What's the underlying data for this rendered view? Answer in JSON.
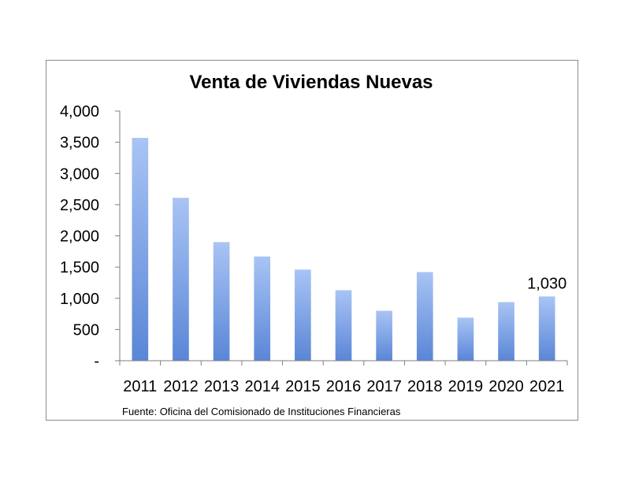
{
  "chart_data": {
    "type": "bar",
    "title": "Venta de Viviendas Nuevas",
    "categories": [
      "2011",
      "2012",
      "2013",
      "2014",
      "2015",
      "2016",
      "2017",
      "2018",
      "2019",
      "2020",
      "2021"
    ],
    "values": [
      3570,
      2610,
      1900,
      1670,
      1460,
      1130,
      800,
      1420,
      690,
      940,
      1030
    ],
    "ylim": [
      0,
      4000
    ],
    "yticks": [
      "-",
      "500",
      "1,000",
      "1,500",
      "2,000",
      "2,500",
      "3,000",
      "3,500",
      "4,000"
    ],
    "data_labels": [
      {
        "category": "2021",
        "text": "1,030"
      }
    ],
    "grid": false,
    "legend": "none",
    "bar_color_top": "#a9c4f5",
    "bar_color_bottom": "#5a86d6",
    "source": "Fuente: Oficina del Comisionado de Instituciones Financieras"
  }
}
